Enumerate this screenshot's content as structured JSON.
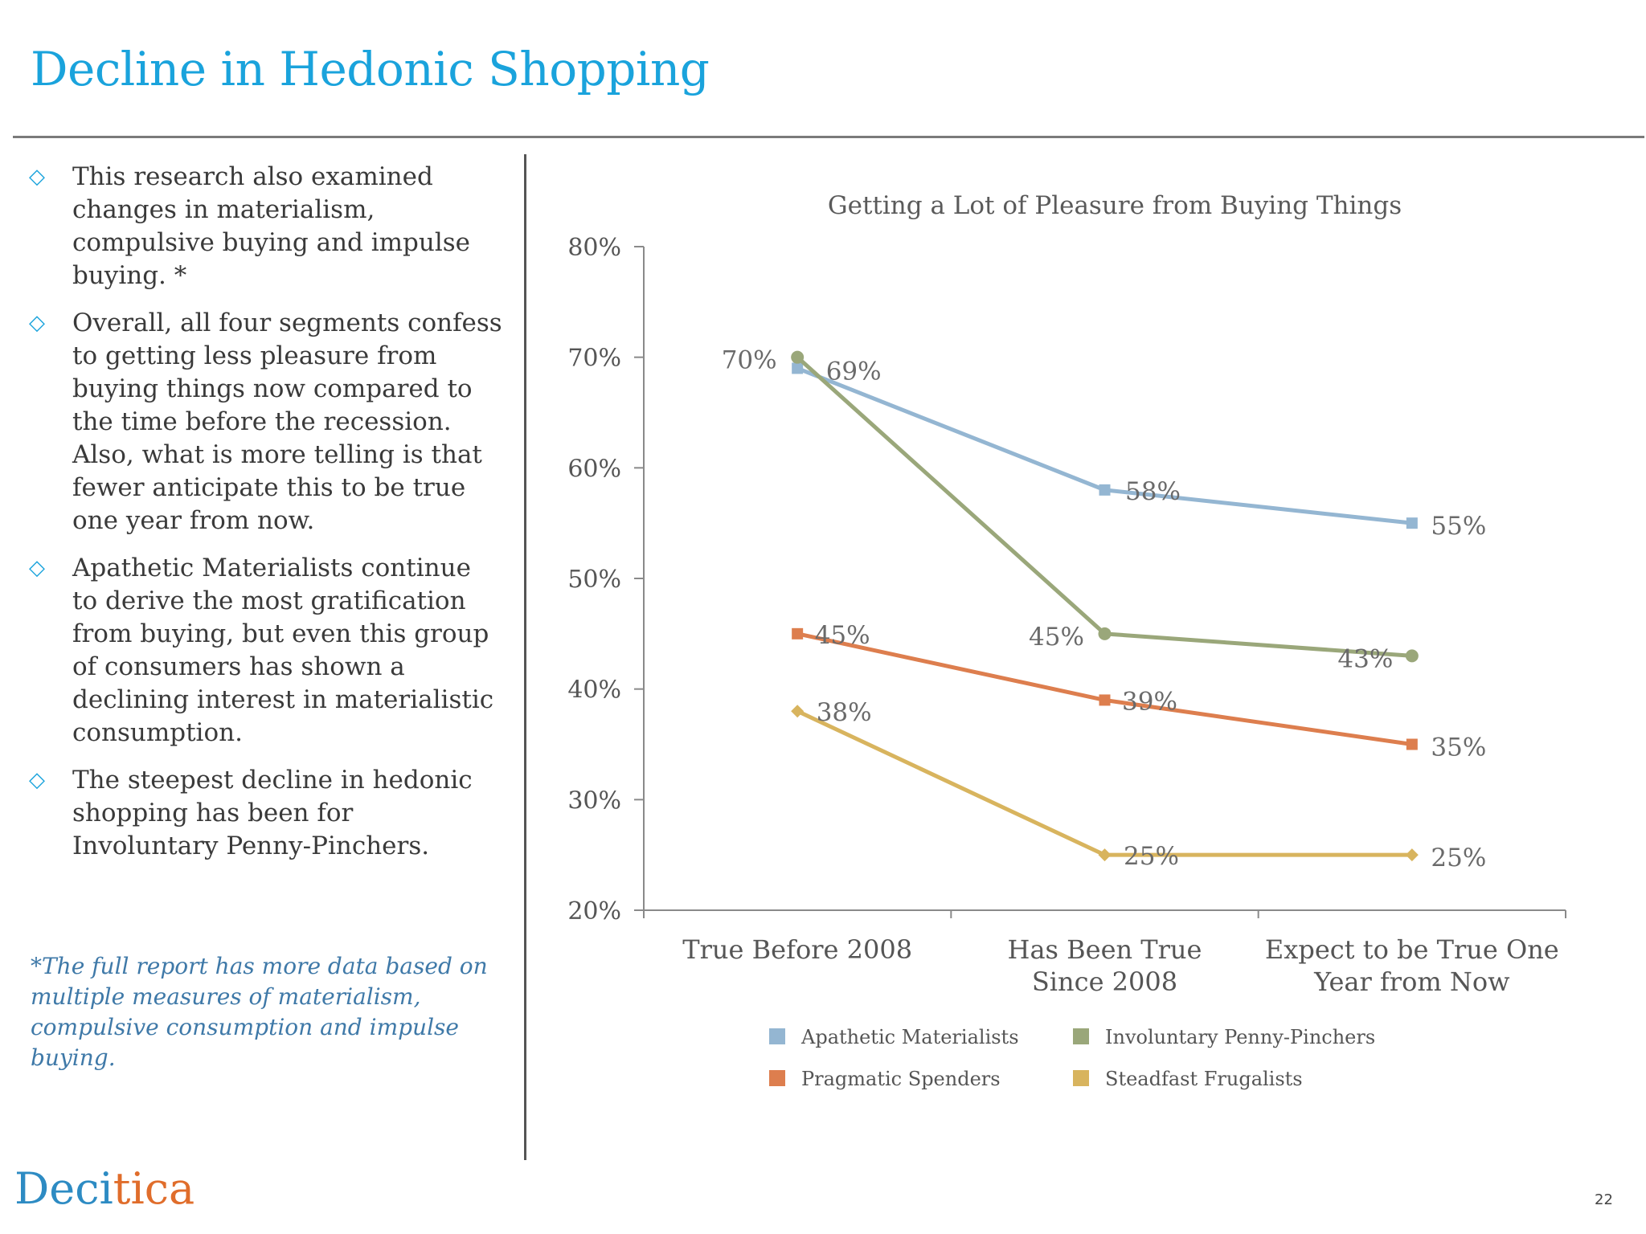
{
  "slide": {
    "title": "Decline in Hedonic Shopping",
    "bullets": [
      "This research also examined changes in materialism, compulsive buying and impulse buying. *",
      "Overall, all four segments confess to getting less pleasure from buying things now compared to the time before the recession.  Also, what is more telling is that fewer anticipate this to be true one year from now.",
      "Apathetic Materialists continue to derive the most gratification from buying, but even this group of consumers has shown a declining interest in materialistic consumption.",
      "The steepest decline in hedonic shopping has been for Involuntary Penny-Pinchers."
    ],
    "footnote": "*The full report has more data based on multiple measures of materialism, compulsive consumption and impulse buying.",
    "logo_text": {
      "part1": "Deci",
      "part2": "tica"
    },
    "page_number": "22",
    "bullet_icon": "diamond-outline-icon",
    "colors": {
      "title": "#1aa3dc",
      "footnote": "#3f79a8",
      "logo_blue": "#2d8bc3",
      "logo_orange": "#e06d2b"
    }
  },
  "chart_data": {
    "type": "line",
    "title": "Getting a Lot of Pleasure from Buying Things",
    "categories": [
      "True Before 2008",
      "Has Been True Since 2008",
      "Expect to be True One Year from Now"
    ],
    "ylim": [
      0.2,
      0.8
    ],
    "yticks": [
      0.2,
      0.3,
      0.4,
      0.5,
      0.6,
      0.7,
      0.8
    ],
    "ytick_labels": [
      "20%",
      "30%",
      "40%",
      "50%",
      "60%",
      "70%",
      "80%"
    ],
    "grid": false,
    "legend_position": "bottom",
    "series": [
      {
        "name": "Apathetic Materialists",
        "values": [
          0.69,
          0.58,
          0.55
        ],
        "labels": [
          "69%",
          "58%",
          "55%"
        ],
        "color": "#94b6d2",
        "marker": "square"
      },
      {
        "name": "Involuntary Penny-Pinchers",
        "values": [
          0.7,
          0.45,
          0.43
        ],
        "labels": [
          "70%",
          "45%",
          "43%"
        ],
        "color": "#9aa77a",
        "marker": "circle"
      },
      {
        "name": "Pragmatic Spenders",
        "values": [
          0.45,
          0.39,
          0.35
        ],
        "labels": [
          "45%",
          "39%",
          "35%"
        ],
        "color": "#dd7e4e",
        "marker": "square"
      },
      {
        "name": "Steadfast Frugalists",
        "values": [
          0.38,
          0.25,
          0.25
        ],
        "labels": [
          "38%",
          "25%",
          "25%"
        ],
        "color": "#d8b45e",
        "marker": "diamond"
      }
    ]
  }
}
